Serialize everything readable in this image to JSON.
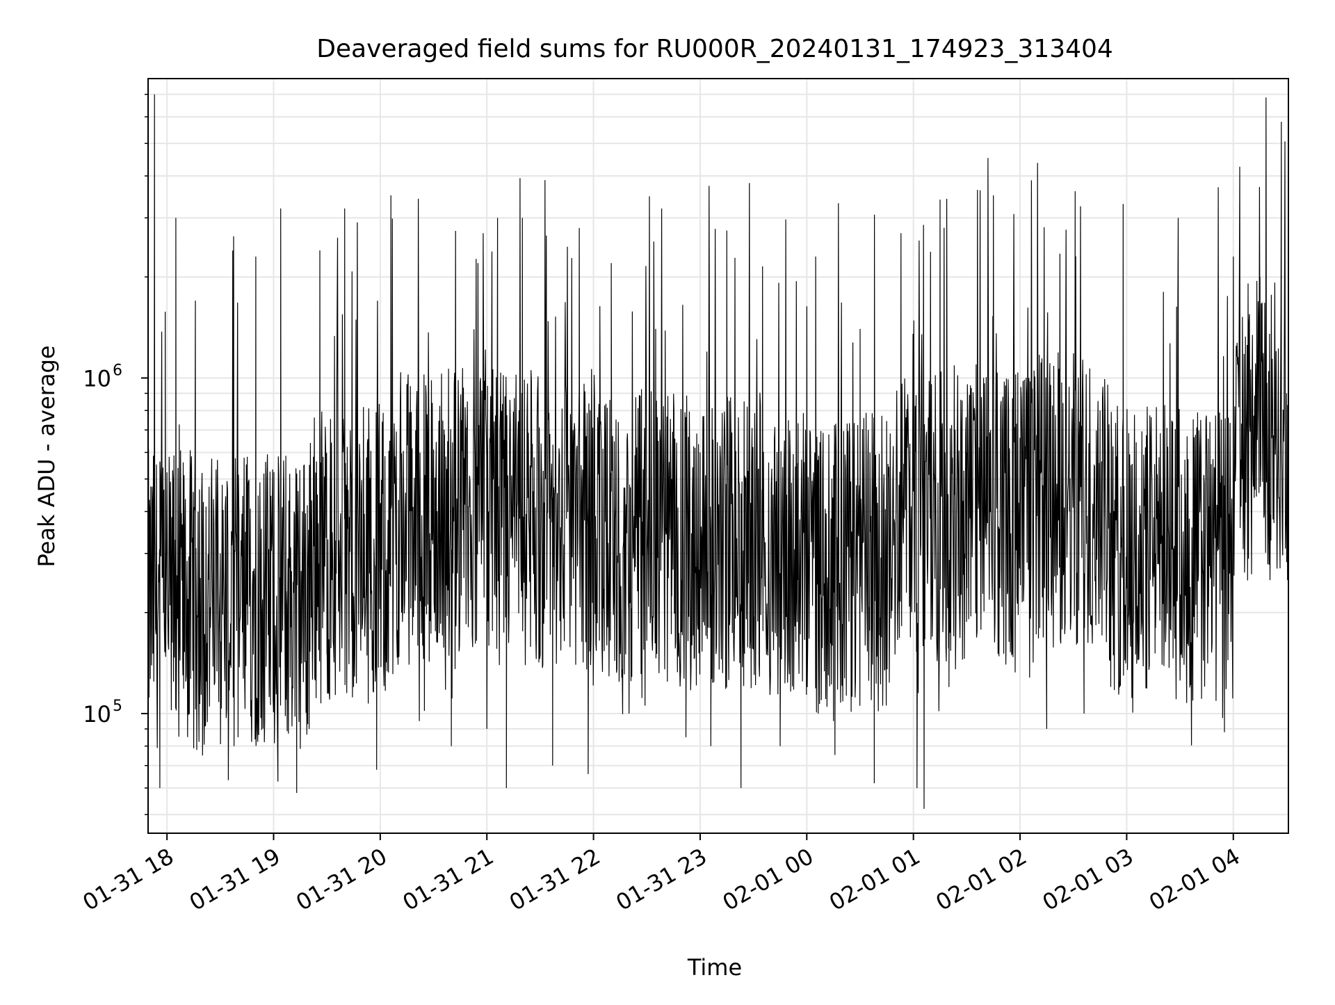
{
  "chart_data": {
    "type": "line",
    "title": "Deaveraged field sums for RU000R_20240131_174923_313404",
    "xlabel": "Time",
    "ylabel": "Peak ADU - average",
    "yscale": "log",
    "ylim": [
      44000,
      7800000
    ],
    "xlim": [
      "2024-01-31 17:49:23",
      "2024-02-01 04:31:00"
    ],
    "grid": true,
    "grid_color": "#e6e6e6",
    "line_color": "#000000",
    "background": "#ffffff",
    "x_ticks": [
      {
        "t": "2024-01-31 18:00",
        "label": "01-31 18"
      },
      {
        "t": "2024-01-31 19:00",
        "label": "01-31 19"
      },
      {
        "t": "2024-01-31 20:00",
        "label": "01-31 20"
      },
      {
        "t": "2024-01-31 21:00",
        "label": "01-31 21"
      },
      {
        "t": "2024-01-31 22:00",
        "label": "01-31 22"
      },
      {
        "t": "2024-01-31 23:00",
        "label": "01-31 23"
      },
      {
        "t": "2024-02-01 00:00",
        "label": "02-01 00"
      },
      {
        "t": "2024-02-01 01:00",
        "label": "02-01 01"
      },
      {
        "t": "2024-02-01 02:00",
        "label": "02-01 02"
      },
      {
        "t": "2024-02-01 03:00",
        "label": "02-01 03"
      },
      {
        "t": "2024-02-01 04:00",
        "label": "02-01 04"
      }
    ],
    "y_major_ticks": [
      {
        "value": 100000,
        "base": "10",
        "exp": "5"
      },
      {
        "value": 1000000,
        "base": "10",
        "exp": "6"
      }
    ],
    "series": [
      {
        "points": [
          [
            "2024-01-31 17:50",
            250000
          ],
          [
            "2024-01-31 17:53",
            7000000
          ],
          [
            "2024-01-31 17:56",
            60000
          ],
          [
            "2024-01-31 17:59",
            200000
          ],
          [
            "2024-01-31 18:05",
            3000000
          ],
          [
            "2024-01-31 18:09",
            130000
          ],
          [
            "2024-01-31 18:16",
            1700000
          ],
          [
            "2024-01-31 18:20",
            75000
          ],
          [
            "2024-01-31 18:30",
            300000
          ],
          [
            "2024-01-31 18:37",
            2100000
          ],
          [
            "2024-01-31 18:40",
            85000
          ],
          [
            "2024-01-31 18:50",
            2300000
          ],
          [
            "2024-01-31 18:55",
            95000
          ],
          [
            "2024-01-31 19:04",
            3200000
          ],
          [
            "2024-01-31 19:07",
            110000
          ],
          [
            "2024-01-31 19:13",
            58000
          ],
          [
            "2024-01-31 19:20",
            90000
          ],
          [
            "2024-01-31 19:26",
            2400000
          ],
          [
            "2024-01-31 19:30",
            150000
          ],
          [
            "2024-01-31 19:40",
            3200000
          ],
          [
            "2024-01-31 19:45",
            120000
          ],
          [
            "2024-01-31 19:58",
            68000
          ],
          [
            "2024-01-31 20:06",
            3500000
          ],
          [
            "2024-01-31 20:12",
            200000
          ],
          [
            "2024-01-31 20:22",
            95000
          ],
          [
            "2024-01-31 20:36",
            400000
          ],
          [
            "2024-01-31 20:40",
            80000
          ],
          [
            "2024-01-31 20:55",
            2200000
          ],
          [
            "2024-01-31 21:00",
            90000
          ],
          [
            "2024-01-31 21:06",
            3000000
          ],
          [
            "2024-01-31 21:11",
            60000
          ],
          [
            "2024-01-31 21:20",
            3000000
          ],
          [
            "2024-01-31 21:30",
            150000
          ],
          [
            "2024-01-31 21:37",
            70000
          ],
          [
            "2024-01-31 21:52",
            2800000
          ],
          [
            "2024-01-31 21:57",
            66000
          ],
          [
            "2024-01-31 22:10",
            2200000
          ],
          [
            "2024-01-31 22:20",
            100000
          ],
          [
            "2024-01-31 22:35",
            1400000
          ],
          [
            "2024-01-31 22:44",
            500000
          ],
          [
            "2024-01-31 22:52",
            85000
          ],
          [
            "2024-01-31 23:00",
            600000
          ],
          [
            "2024-01-31 23:06",
            80000
          ],
          [
            "2024-01-31 23:15",
            2750000
          ],
          [
            "2024-01-31 23:23",
            60000
          ],
          [
            "2024-01-31 23:35",
            400000
          ],
          [
            "2024-01-31 23:45",
            80000
          ],
          [
            "2024-01-31 23:55",
            250000
          ],
          [
            "2024-02-01 00:05",
            2300000
          ],
          [
            "2024-02-01 00:15",
            95000
          ],
          [
            "2024-02-01 00:30",
            1400000
          ],
          [
            "2024-02-01 00:38",
            62000
          ],
          [
            "2024-02-01 00:53",
            2700000
          ],
          [
            "2024-02-01 01:02",
            60000
          ],
          [
            "2024-02-01 01:06",
            52000
          ],
          [
            "2024-02-01 01:15",
            3400000
          ],
          [
            "2024-02-01 01:20",
            120000
          ],
          [
            "2024-02-01 01:30",
            600000
          ],
          [
            "2024-02-01 01:45",
            3500000
          ],
          [
            "2024-02-01 01:52",
            140000
          ],
          [
            "2024-02-01 02:05",
            1000000
          ],
          [
            "2024-02-01 02:15",
            90000
          ],
          [
            "2024-02-01 02:31",
            3600000
          ],
          [
            "2024-02-01 02:36",
            100000
          ],
          [
            "2024-02-01 02:45",
            800000
          ],
          [
            "2024-02-01 02:58",
            3300000
          ],
          [
            "2024-02-01 03:05",
            150000
          ],
          [
            "2024-02-01 03:16",
            300000
          ],
          [
            "2024-02-01 03:29",
            3000000
          ],
          [
            "2024-02-01 03:35",
            180000
          ],
          [
            "2024-02-01 03:55",
            88000
          ],
          [
            "2024-02-01 04:00",
            2300000
          ],
          [
            "2024-02-01 04:05",
            500000
          ],
          [
            "2024-02-01 04:15",
            2000000
          ],
          [
            "2024-02-01 04:20",
            450000
          ],
          [
            "2024-02-01 04:27",
            5800000
          ],
          [
            "2024-02-01 04:30",
            900000
          ]
        ]
      }
    ]
  }
}
